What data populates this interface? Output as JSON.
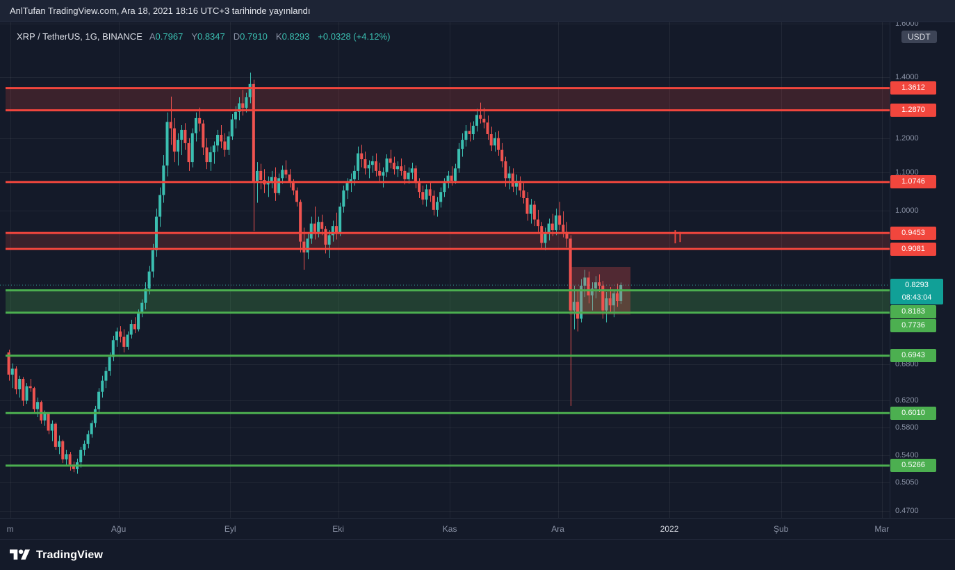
{
  "topbar": {
    "link_text": "AnlTufan TradingView.com",
    "rest_text": ", Ara 18, 2021 18:16 UTC+3 tarihinde yayınlandı"
  },
  "header": {
    "symbol": "XRP / TetherUS, 1G, BINANCE",
    "ohlc": [
      {
        "label": "A",
        "value": "0.7967"
      },
      {
        "label": "Y",
        "value": "0.8347"
      },
      {
        "label": "D",
        "value": "0.7910"
      },
      {
        "label": "K",
        "value": "0.8293"
      }
    ],
    "change": "+0.0328 (+4.12%)"
  },
  "price_scale": {
    "unit_button": "USDT",
    "current": {
      "price": 0.8293,
      "label": "0.8293",
      "countdown": "08:43:04"
    },
    "ticks": [
      {
        "price": 1.6,
        "label": "1.6000"
      },
      {
        "price": 1.4,
        "label": "1.4000"
      },
      {
        "price": 1.2,
        "label": "1.2000"
      },
      {
        "price": 1.1,
        "label": "1.1000"
      },
      {
        "price": 1.0,
        "label": "1.0000"
      },
      {
        "price": 0.68,
        "label": "0.6800"
      },
      {
        "price": 0.62,
        "label": "0.6200"
      },
      {
        "price": 0.58,
        "label": "0.5800"
      },
      {
        "price": 0.54,
        "label": "0.5400"
      },
      {
        "price": 0.505,
        "label": "0.5050"
      },
      {
        "price": 0.47,
        "label": "0.4700"
      }
    ]
  },
  "time_axis": {
    "labels": [
      {
        "text": "m",
        "day": 0.9
      },
      {
        "text": "Ağu",
        "day": 31
      },
      {
        "text": "Eyl",
        "day": 62
      },
      {
        "text": "Eki",
        "day": 92
      },
      {
        "text": "Kas",
        "day": 123
      },
      {
        "text": "Ara",
        "day": 153
      },
      {
        "text": "2022",
        "day": 184,
        "bright": true
      },
      {
        "text": "Şub",
        "day": 215
      },
      {
        "text": "Mar",
        "day": 243
      }
    ]
  },
  "footer": {
    "logo_text": "TradingView"
  },
  "colors": {
    "bg": "#141a29",
    "grid": "rgba(255,255,255,0.06)",
    "up": "#3bbfb1",
    "down": "#ef5350",
    "red": "#f1463d",
    "green": "#4caf50",
    "current": "#11a097",
    "red_fill": "rgba(241,70,61,0.18)",
    "green_fill": "rgba(76,175,80,0.25)",
    "box_fill": "rgba(239,83,80,0.28)"
  },
  "chart_data": {
    "type": "candlestick",
    "title": "XRP / TetherUS",
    "exchange": "BINANCE",
    "interval": "1G",
    "quote_unit": "USDT",
    "scale": "log",
    "start_date": "2021-07-01",
    "end_date": "2021-12-18",
    "y_range": [
      0.45,
      1.65
    ],
    "last_candle": {
      "open": 0.7967,
      "high": 0.8347,
      "low": 0.791,
      "close": 0.8293,
      "change": "+0.0328 (+4.12%)"
    },
    "levels": {
      "lines": [
        {
          "price": 1.3612,
          "label": "1.3612",
          "color": "red"
        },
        {
          "price": 1.287,
          "label": "1.2870",
          "color": "red"
        },
        {
          "price": 1.0746,
          "label": "1.0746",
          "color": "red"
        },
        {
          "price": 0.9453,
          "label": "0.9453",
          "color": "red"
        },
        {
          "price": 0.9081,
          "label": "0.9081",
          "color": "red"
        },
        {
          "price": 0.8183,
          "label": "0.8183",
          "color": "green"
        },
        {
          "price": 0.7736,
          "label": "0.7736",
          "color": "green"
        },
        {
          "price": 0.6943,
          "label": "0.6943",
          "color": "green"
        },
        {
          "price": 0.601,
          "label": "0.6010",
          "color": "green"
        },
        {
          "price": 0.5266,
          "label": "0.5266",
          "color": "green"
        }
      ],
      "bands": [
        {
          "top": 1.3612,
          "bottom": 1.287,
          "color": "red"
        },
        {
          "top": 0.9453,
          "bottom": 0.9081,
          "color": "red"
        },
        {
          "top": 0.8183,
          "bottom": 0.7736,
          "color": "green"
        }
      ]
    },
    "annotations": {
      "box": {
        "day_start": 156.2,
        "day_end": 173.2,
        "price_top": 0.868,
        "price_bottom": 0.77
      },
      "marks": [
        {
          "day": 185,
          "p1": 0.952,
          "p2": 0.921
        },
        {
          "day": 186.3,
          "p1": 0.948,
          "p2": 0.924
        }
      ]
    },
    "candles": [
      [
        0.7,
        0.705,
        0.652,
        0.662
      ],
      [
        0.662,
        0.681,
        0.64,
        0.672
      ],
      [
        0.672,
        0.676,
        0.63,
        0.638
      ],
      [
        0.638,
        0.66,
        0.625,
        0.655
      ],
      [
        0.655,
        0.658,
        0.612,
        0.62
      ],
      [
        0.62,
        0.648,
        0.615,
        0.643
      ],
      [
        0.643,
        0.655,
        0.634,
        0.64
      ],
      [
        0.64,
        0.642,
        0.6,
        0.607
      ],
      [
        0.607,
        0.625,
        0.595,
        0.618
      ],
      [
        0.618,
        0.62,
        0.585,
        0.59
      ],
      [
        0.59,
        0.605,
        0.582,
        0.6
      ],
      [
        0.6,
        0.602,
        0.57,
        0.575
      ],
      [
        0.575,
        0.59,
        0.56,
        0.585
      ],
      [
        0.585,
        0.587,
        0.548,
        0.552
      ],
      [
        0.552,
        0.568,
        0.542,
        0.56
      ],
      [
        0.56,
        0.562,
        0.53,
        0.535
      ],
      [
        0.535,
        0.548,
        0.526,
        0.542
      ],
      [
        0.542,
        0.545,
        0.52,
        0.528
      ],
      [
        0.528,
        0.532,
        0.518,
        0.522
      ],
      [
        0.522,
        0.536,
        0.516,
        0.531
      ],
      [
        0.531,
        0.552,
        0.524,
        0.548
      ],
      [
        0.548,
        0.561,
        0.54,
        0.556
      ],
      [
        0.556,
        0.575,
        0.55,
        0.57
      ],
      [
        0.57,
        0.59,
        0.565,
        0.586
      ],
      [
        0.586,
        0.612,
        0.58,
        0.607
      ],
      [
        0.607,
        0.64,
        0.6,
        0.634
      ],
      [
        0.634,
        0.66,
        0.625,
        0.652
      ],
      [
        0.652,
        0.675,
        0.64,
        0.668
      ],
      [
        0.668,
        0.7,
        0.66,
        0.692
      ],
      [
        0.692,
        0.73,
        0.685,
        0.722
      ],
      [
        0.722,
        0.745,
        0.71,
        0.738
      ],
      [
        0.738,
        0.748,
        0.718,
        0.728
      ],
      [
        0.728,
        0.742,
        0.7,
        0.71
      ],
      [
        0.71,
        0.738,
        0.705,
        0.732
      ],
      [
        0.732,
        0.76,
        0.725,
        0.752
      ],
      [
        0.752,
        0.765,
        0.735,
        0.742
      ],
      [
        0.742,
        0.78,
        0.738,
        0.773
      ],
      [
        0.773,
        0.8,
        0.765,
        0.793
      ],
      [
        0.793,
        0.835,
        0.78,
        0.822
      ],
      [
        0.822,
        0.87,
        0.81,
        0.858
      ],
      [
        0.858,
        0.92,
        0.845,
        0.905
      ],
      [
        0.905,
        1.005,
        0.89,
        0.985
      ],
      [
        0.985,
        1.06,
        0.96,
        1.04
      ],
      [
        1.04,
        1.15,
        1.02,
        1.12
      ],
      [
        1.12,
        1.28,
        1.09,
        1.25
      ],
      [
        1.25,
        1.332,
        1.18,
        1.23
      ],
      [
        1.23,
        1.262,
        1.13,
        1.16
      ],
      [
        1.16,
        1.215,
        1.12,
        1.195
      ],
      [
        1.195,
        1.24,
        1.15,
        1.225
      ],
      [
        1.225,
        1.246,
        1.165,
        1.185
      ],
      [
        1.185,
        1.2,
        1.105,
        1.13
      ],
      [
        1.13,
        1.23,
        1.115,
        1.215
      ],
      [
        1.215,
        1.28,
        1.19,
        1.262
      ],
      [
        1.262,
        1.296,
        1.22,
        1.245
      ],
      [
        1.245,
        1.256,
        1.15,
        1.172
      ],
      [
        1.172,
        1.2,
        1.11,
        1.13
      ],
      [
        1.13,
        1.175,
        1.105,
        1.158
      ],
      [
        1.158,
        1.19,
        1.125,
        1.178
      ],
      [
        1.178,
        1.225,
        1.16,
        1.21
      ],
      [
        1.21,
        1.24,
        1.17,
        1.19
      ],
      [
        1.19,
        1.215,
        1.145,
        1.165
      ],
      [
        1.165,
        1.22,
        1.15,
        1.205
      ],
      [
        1.205,
        1.275,
        1.195,
        1.258
      ],
      [
        1.258,
        1.3,
        1.23,
        1.282
      ],
      [
        1.282,
        1.33,
        1.255,
        1.31
      ],
      [
        1.31,
        1.355,
        1.27,
        1.295
      ],
      [
        1.295,
        1.345,
        1.28,
        1.33
      ],
      [
        1.33,
        1.415,
        1.31,
        1.375
      ],
      [
        1.375,
        1.39,
        0.95,
        1.075
      ],
      [
        1.075,
        1.13,
        1.02,
        1.105
      ],
      [
        1.105,
        1.125,
        1.055,
        1.08
      ],
      [
        1.08,
        1.11,
        1.045,
        1.068
      ],
      [
        1.068,
        1.09,
        1.035,
        1.072
      ],
      [
        1.072,
        1.105,
        1.058,
        1.088
      ],
      [
        1.088,
        1.115,
        1.025,
        1.045
      ],
      [
        1.045,
        1.098,
        1.04,
        1.085
      ],
      [
        1.085,
        1.12,
        1.07,
        1.108
      ],
      [
        1.108,
        1.135,
        1.085,
        1.095
      ],
      [
        1.095,
        1.11,
        1.06,
        1.075
      ],
      [
        1.075,
        1.082,
        1.04,
        1.052
      ],
      [
        1.052,
        1.06,
        1.01,
        1.022
      ],
      [
        1.022,
        1.028,
        0.9,
        0.925
      ],
      [
        0.925,
        0.958,
        0.862,
        0.9
      ],
      [
        0.9,
        0.945,
        0.885,
        0.932
      ],
      [
        0.932,
        0.985,
        0.92,
        0.968
      ],
      [
        0.968,
        1.01,
        0.93,
        0.948
      ],
      [
        0.948,
        0.985,
        0.935,
        0.972
      ],
      [
        0.972,
        0.99,
        0.94,
        0.955
      ],
      [
        0.955,
        0.962,
        0.898,
        0.918
      ],
      [
        0.918,
        0.952,
        0.888,
        0.94
      ],
      [
        0.94,
        0.975,
        0.925,
        0.962
      ],
      [
        0.962,
        0.995,
        0.93,
        0.945
      ],
      [
        0.945,
        1.02,
        0.938,
        1.01
      ],
      [
        1.01,
        1.065,
        0.995,
        1.052
      ],
      [
        1.052,
        1.085,
        1.03,
        1.072
      ],
      [
        1.072,
        1.098,
        1.048,
        1.082
      ],
      [
        1.082,
        1.12,
        1.065,
        1.105
      ],
      [
        1.105,
        1.175,
        1.08,
        1.155
      ],
      [
        1.155,
        1.18,
        1.115,
        1.138
      ],
      [
        1.138,
        1.16,
        1.095,
        1.112
      ],
      [
        1.112,
        1.135,
        1.085,
        1.122
      ],
      [
        1.122,
        1.148,
        1.1,
        1.132
      ],
      [
        1.132,
        1.155,
        1.09,
        1.105
      ],
      [
        1.105,
        1.128,
        1.072,
        1.092
      ],
      [
        1.092,
        1.115,
        1.06,
        1.102
      ],
      [
        1.102,
        1.152,
        1.088,
        1.14
      ],
      [
        1.14,
        1.165,
        1.112,
        1.128
      ],
      [
        1.128,
        1.145,
        1.095,
        1.11
      ],
      [
        1.11,
        1.132,
        1.088,
        1.118
      ],
      [
        1.118,
        1.14,
        1.092,
        1.105
      ],
      [
        1.105,
        1.122,
        1.068,
        1.082
      ],
      [
        1.082,
        1.115,
        1.07,
        1.1
      ],
      [
        1.1,
        1.128,
        1.082,
        1.112
      ],
      [
        1.112,
        1.12,
        1.058,
        1.072
      ],
      [
        1.072,
        1.085,
        1.032,
        1.048
      ],
      [
        1.048,
        1.065,
        1.015,
        1.028
      ],
      [
        1.028,
        1.068,
        1.01,
        1.055
      ],
      [
        1.055,
        1.075,
        1.022,
        1.038
      ],
      [
        1.038,
        1.052,
        0.988,
        1.002
      ],
      [
        1.002,
        1.035,
        0.985,
        1.022
      ],
      [
        1.022,
        1.06,
        1.008,
        1.048
      ],
      [
        1.048,
        1.085,
        1.035,
        1.072
      ],
      [
        1.072,
        1.105,
        1.058,
        1.092
      ],
      [
        1.092,
        1.118,
        1.065,
        1.078
      ],
      [
        1.078,
        1.125,
        1.07,
        1.112
      ],
      [
        1.112,
        1.185,
        1.1,
        1.168
      ],
      [
        1.168,
        1.215,
        1.145,
        1.195
      ],
      [
        1.195,
        1.24,
        1.175,
        1.222
      ],
      [
        1.222,
        1.248,
        1.19,
        1.212
      ],
      [
        1.212,
        1.252,
        1.195,
        1.238
      ],
      [
        1.238,
        1.292,
        1.22,
        1.272
      ],
      [
        1.272,
        1.312,
        1.245,
        1.26
      ],
      [
        1.26,
        1.295,
        1.23,
        1.248
      ],
      [
        1.248,
        1.27,
        1.195,
        1.212
      ],
      [
        1.212,
        1.235,
        1.162,
        1.178
      ],
      [
        1.178,
        1.218,
        1.16,
        1.2
      ],
      [
        1.2,
        1.222,
        1.148,
        1.165
      ],
      [
        1.165,
        1.185,
        1.115,
        1.132
      ],
      [
        1.132,
        1.145,
        1.062,
        1.085
      ],
      [
        1.085,
        1.118,
        1.055,
        1.098
      ],
      [
        1.098,
        1.112,
        1.048,
        1.062
      ],
      [
        1.062,
        1.095,
        1.04,
        1.078
      ],
      [
        1.078,
        1.09,
        1.035,
        1.052
      ],
      [
        1.052,
        1.072,
        1.018,
        1.032
      ],
      [
        1.032,
        1.048,
        0.975,
        0.992
      ],
      [
        0.992,
        1.03,
        0.968,
        1.015
      ],
      [
        1.015,
        1.025,
        0.962,
        0.978
      ],
      [
        0.978,
        1.002,
        0.948,
        0.962
      ],
      [
        0.962,
        0.972,
        0.908,
        0.922
      ],
      [
        0.922,
        0.958,
        0.905,
        0.945
      ],
      [
        0.945,
        0.98,
        0.928,
        0.968
      ],
      [
        0.968,
        0.992,
        0.938,
        0.952
      ],
      [
        0.952,
        1.005,
        0.94,
        0.988
      ],
      [
        0.988,
        1.022,
        0.952,
        0.965
      ],
      [
        0.965,
        0.998,
        0.935,
        0.948
      ],
      [
        0.948,
        0.972,
        0.912,
        0.932
      ],
      [
        0.932,
        0.94,
        0.612,
        0.778
      ],
      [
        0.778,
        0.828,
        0.742,
        0.795
      ],
      [
        0.795,
        0.818,
        0.738,
        0.762
      ],
      [
        0.762,
        0.842,
        0.755,
        0.828
      ],
      [
        0.828,
        0.862,
        0.805,
        0.845
      ],
      [
        0.845,
        0.858,
        0.792,
        0.808
      ],
      [
        0.808,
        0.835,
        0.778,
        0.822
      ],
      [
        0.822,
        0.848,
        0.802,
        0.835
      ],
      [
        0.835,
        0.852,
        0.815,
        0.828
      ],
      [
        0.828,
        0.838,
        0.762,
        0.778
      ],
      [
        0.778,
        0.815,
        0.755,
        0.802
      ],
      [
        0.802,
        0.825,
        0.772,
        0.788
      ],
      [
        0.788,
        0.818,
        0.765,
        0.812
      ],
      [
        0.812,
        0.832,
        0.785,
        0.7967
      ],
      [
        0.7967,
        0.8347,
        0.791,
        0.8293
      ]
    ]
  }
}
